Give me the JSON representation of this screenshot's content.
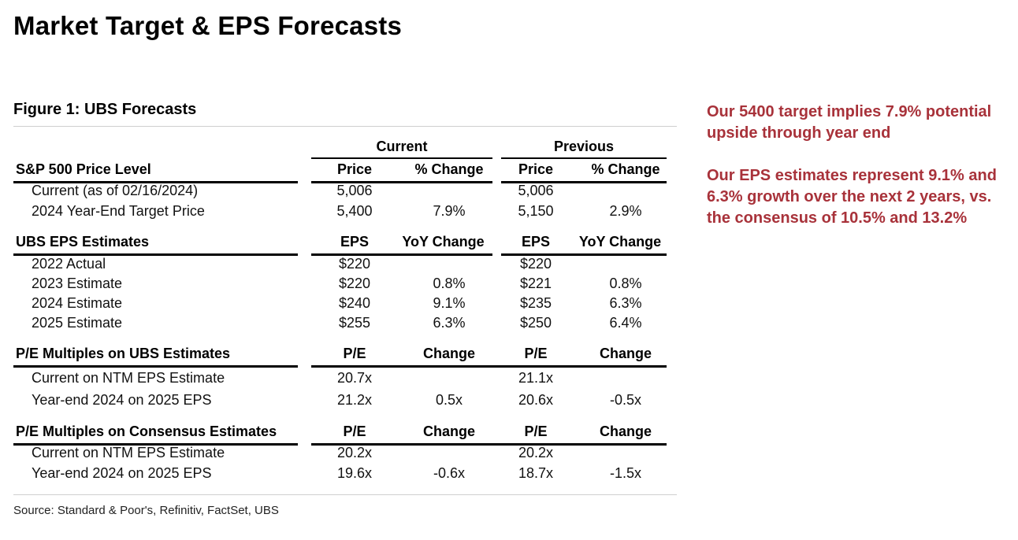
{
  "page_title": "Market Target & EPS Forecasts",
  "figure_title": "Figure 1: UBS Forecasts",
  "groups": {
    "current": "Current",
    "previous": "Previous"
  },
  "sections": [
    {
      "title": "S&P 500 Price Level",
      "col_headers": [
        "Price",
        "% Change",
        "Price",
        "% Change"
      ],
      "rows": [
        {
          "label": "Current (as of 02/16/2024)",
          "values": [
            "5,006",
            "",
            "5,006",
            ""
          ]
        },
        {
          "label": "2024 Year-End Target Price",
          "values": [
            "5,400",
            "7.9%",
            "5,150",
            "2.9%"
          ]
        }
      ]
    },
    {
      "title": "UBS EPS Estimates",
      "col_headers": [
        "EPS",
        "YoY Change",
        "EPS",
        "YoY Change"
      ],
      "rows": [
        {
          "label": "2022 Actual",
          "values": [
            "$220",
            "",
            "$220",
            ""
          ]
        },
        {
          "label": "2023 Estimate",
          "values": [
            "$220",
            "0.8%",
            "$221",
            "0.8%"
          ]
        },
        {
          "label": "2024 Estimate",
          "values": [
            "$240",
            "9.1%",
            "$235",
            "6.3%"
          ]
        },
        {
          "label": "2025 Estimate",
          "values": [
            "$255",
            "6.3%",
            "$250",
            "6.4%"
          ]
        }
      ]
    },
    {
      "title": "P/E Multiples on UBS Estimates",
      "col_headers": [
        "P/E",
        "Change",
        "P/E",
        "Change"
      ],
      "rows": [
        {
          "label": "Current on NTM EPS Estimate",
          "values": [
            "20.7x",
            "",
            "21.1x",
            ""
          ]
        },
        {
          "label": "Year-end 2024 on 2025 EPS",
          "values": [
            "21.2x",
            "0.5x",
            "20.6x",
            "-0.5x"
          ]
        }
      ]
    },
    {
      "title": "P/E Multiples on Consensus Estimates",
      "col_headers": [
        "P/E",
        "Change",
        "P/E",
        "Change"
      ],
      "rows": [
        {
          "label": "Current on NTM EPS Estimate",
          "values": [
            "20.2x",
            "",
            "20.2x",
            ""
          ]
        },
        {
          "label": "Year-end 2024 on 2025 EPS",
          "values": [
            "19.6x",
            "-0.6x",
            "18.7x",
            "-1.5x"
          ]
        }
      ]
    }
  ],
  "source": "Source: Standard & Poor's, Refinitiv, FactSet, UBS",
  "commentary": [
    "Our 5400 target implies 7.9% potential upside through year end",
    "Our EPS estimates represent 9.1% and 6.3% growth over the next 2 years, vs. the consensus of 10.5% and 13.2%"
  ],
  "colors": {
    "commentary": "#a8323a"
  }
}
